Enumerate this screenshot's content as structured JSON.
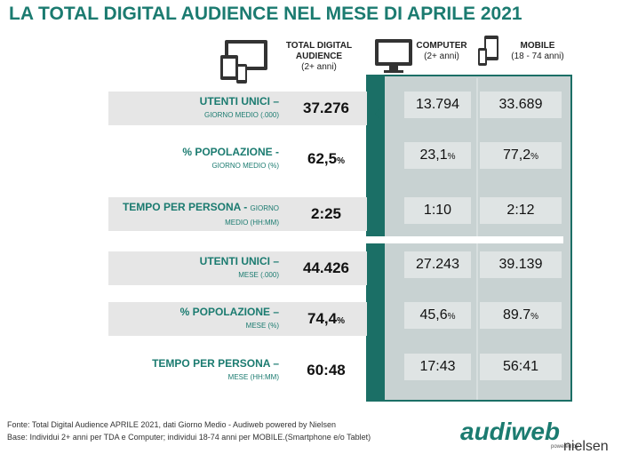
{
  "title": "LA TOTAL DIGITAL AUDIENCE NEL MESE DI APRILE 2021",
  "columns": [
    {
      "label": "TOTAL DIGITAL AUDIENCE",
      "sub": "(2+ anni)"
    },
    {
      "label": "COMPUTER",
      "sub": "(2+ anni)"
    },
    {
      "label": "MOBILE",
      "sub": "(18 - 74 anni)"
    }
  ],
  "rows": [
    {
      "label": "UTENTI UNICI –",
      "sub": "GIORNO MEDIO (.000)",
      "values": [
        "37.276",
        "13.794",
        "33.689"
      ]
    },
    {
      "label": "% POPOLAZIONE -",
      "sub": "GIORNO MEDIO (%)",
      "values": [
        "62,5%",
        "23,1%",
        "77,2%"
      ]
    },
    {
      "label": "TEMPO PER PERSONA -",
      "sub": "GIORNO MEDIO (HH:MM)",
      "values": [
        "2:25",
        "1:10",
        "2:12"
      ]
    },
    {
      "label": "UTENTI UNICI –",
      "sub": "MESE (.000)",
      "values": [
        "44.426",
        "27.243",
        "39.139"
      ]
    },
    {
      "label": "% POPOLAZIONE –",
      "sub": "MESE (%)",
      "values": [
        "74,4%",
        "45,6%",
        "89.7%"
      ]
    },
    {
      "label": "TEMPO PER PERSONA –",
      "sub": "MESE (HH:MM)",
      "values": [
        "60:48",
        "17:43",
        "56:41"
      ]
    }
  ],
  "footer": [
    "Fonte: Total Digital Audience APRILE 2021, dati Giorno Medio - Audiweb powered by Nielsen",
    "Base:  Individui 2+ anni per TDA e Computer; individui 18-74 anni per MOBILE.(Smartphone e/o Tablet)"
  ],
  "logo": {
    "name": "audiweb",
    "powered": "powered by",
    "brand": "nielsen"
  }
}
